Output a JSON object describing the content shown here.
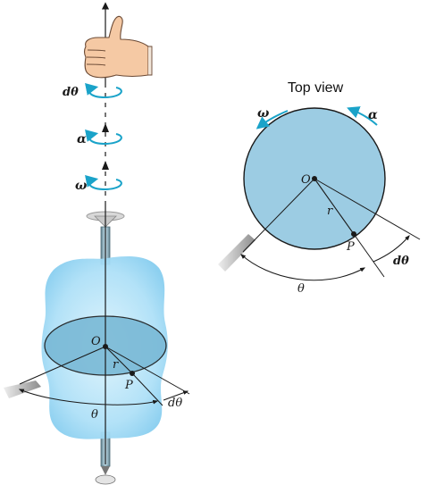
{
  "title": "Top view",
  "colors": {
    "disk_fill": "#9ccce3",
    "body_fill": "#bfe6fa",
    "spin_arrow": "#1aa3c9",
    "line": "#1a1a1a"
  },
  "left_figure": {
    "labels": {
      "d_theta_top": "dθ",
      "alpha": "α",
      "omega": "ω",
      "origin": "O",
      "radius": "r",
      "point": "P",
      "theta": "θ",
      "d_theta": "dθ"
    },
    "icons": [
      "thumbs-up-hand-icon",
      "rotation-arrow-icon",
      "support-base-icon"
    ]
  },
  "top_view": {
    "labels": {
      "omega": "ω",
      "alpha": "α",
      "origin": "O",
      "radius": "r",
      "point": "P",
      "theta": "θ",
      "d_theta": "dθ"
    }
  }
}
